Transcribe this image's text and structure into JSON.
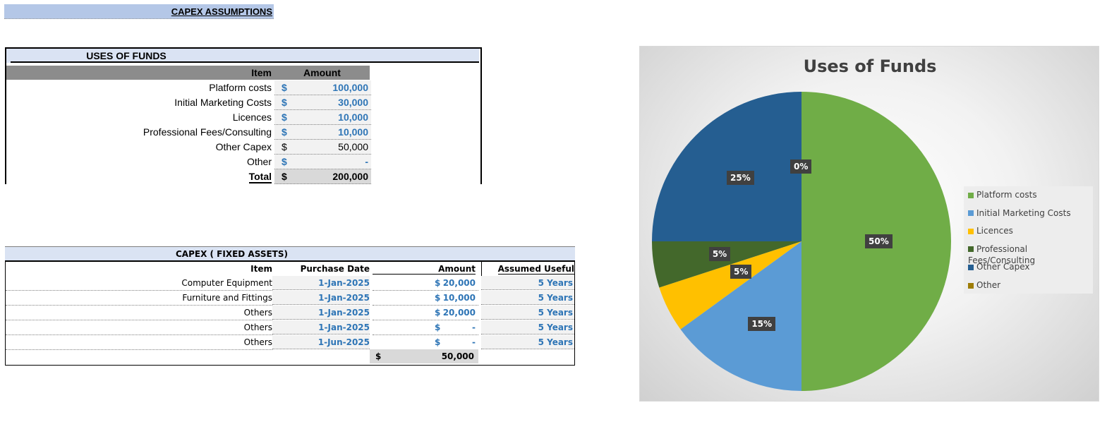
{
  "header": {
    "title": "CAPEX ASSUMPTIONS"
  },
  "uses_of_funds": {
    "title": "USES OF FUNDS",
    "col_item": "Item",
    "col_amount": "Amount",
    "rows": [
      {
        "label": "Platform costs",
        "symbol": "$",
        "value": "100,000",
        "style": "input"
      },
      {
        "label": "Initial Marketing Costs",
        "symbol": "$",
        "value": "30,000",
        "style": "input"
      },
      {
        "label": "Licences",
        "symbol": "$",
        "value": "10,000",
        "style": "input"
      },
      {
        "label": "Professional Fees/Consulting",
        "symbol": "$",
        "value": "10,000",
        "style": "input"
      },
      {
        "label": "Other Capex",
        "symbol": "$",
        "value": "50,000",
        "style": "calc"
      },
      {
        "label": "Other",
        "symbol": "$",
        "value": "-",
        "style": "input"
      }
    ],
    "total": {
      "label": "Total",
      "symbol": "$",
      "value": "200,000"
    }
  },
  "fixed_assets": {
    "title": "CAPEX ( FIXED ASSETS)",
    "col_item": "Item",
    "col_date": "Purchase Date",
    "col_amount": "Amount",
    "col_life": "Assumed Useful Life",
    "rows": [
      {
        "item": "Computer Equipment",
        "date": "1-Jan-2025",
        "symbol": "$",
        "amount": "20,000",
        "life": "5  Years"
      },
      {
        "item": "Furniture and Fittings",
        "date": "1-Jan-2025",
        "symbol": "$",
        "amount": "10,000",
        "life": "5  Years"
      },
      {
        "item": "Others",
        "date": "1-Jan-2025",
        "symbol": "$",
        "amount": "20,000",
        "life": "5  Years"
      },
      {
        "item": "Others",
        "date": "1-Jan-2025",
        "symbol": "$",
        "amount": "-",
        "life": "5  Years"
      },
      {
        "item": "Others",
        "date": "1-Jun-2025",
        "symbol": "$",
        "amount": "-",
        "life": "5  Years"
      }
    ],
    "total": {
      "symbol": "$",
      "value": "50,000"
    }
  },
  "chart_data": {
    "type": "pie",
    "title": "Uses of Funds",
    "legend_position": "right",
    "categories": [
      "Platform costs",
      "Initial Marketing Costs",
      "Licences",
      "Professional Fees/Consulting",
      "Other Capex",
      "Other"
    ],
    "values": [
      100000,
      30000,
      10000,
      10000,
      50000,
      0
    ],
    "labels": [
      "50%",
      "15%",
      "5%",
      "5%",
      "25%",
      "0%"
    ],
    "colors": [
      "#70ad47",
      "#5b9bd5",
      "#ffc000",
      "#43682b",
      "#255e91",
      "#9e7d06"
    ]
  }
}
